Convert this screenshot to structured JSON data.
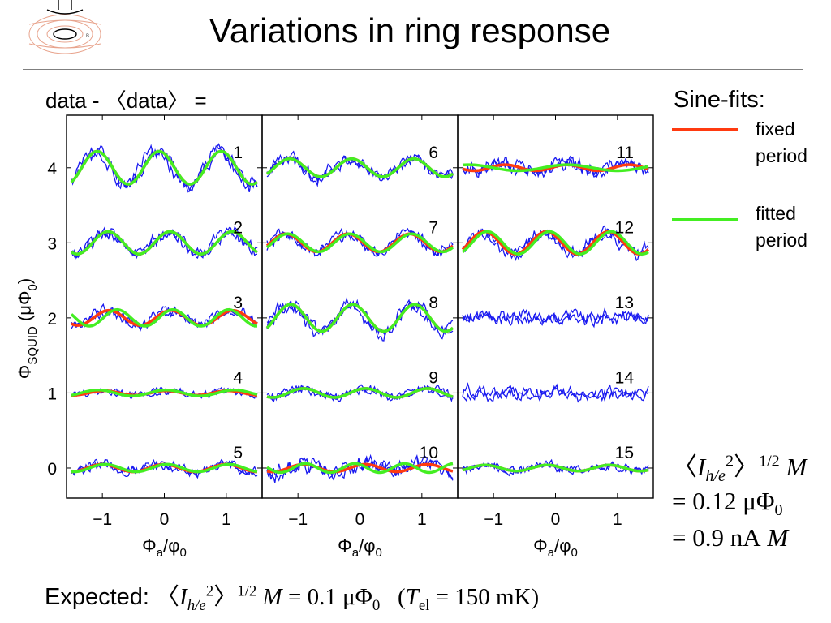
{
  "slide": {
    "title": "Variations in ring response",
    "eq_top": "data - 〈data〉 =",
    "sine_fits_label": "Sine-fits:",
    "legend_fixed_1": "fixed",
    "legend_fixed_2": "period",
    "legend_fitted_1": "fitted",
    "legend_fitted_2": "period",
    "result_line1_a": "〈",
    "result_line1_I": "I",
    "result_line1_sub": "h/e",
    "result_line1_sup2": "2",
    "result_line1_close": "〉",
    "result_line1_sup": "1/2",
    "result_line1_M": "M",
    "result_line2": "= 0.12 μΦ",
    "result_line2_sub": "0",
    "result_line3": "= 0.9 nA",
    "result_line3_M": "M",
    "expected_label": "Expected:",
    "expected_open": "〈",
    "expected_I": "I",
    "expected_sub": "h/e",
    "expected_sup2": "2",
    "expected_close": "〉",
    "expected_sup": "1/2",
    "expected_M": "M",
    "expected_val": "= 0.1 μΦ",
    "expected_val_sub": "0",
    "expected_T_open": "(",
    "expected_T": "T",
    "expected_T_sub": "el",
    "expected_T_val": "= 150 mK)"
  },
  "colors": {
    "data": "#1a1af0",
    "fixed": "#ff3a10",
    "fitted": "#44ee22",
    "frame": "#000000"
  },
  "chart_data": {
    "type": "line",
    "ylabel": "ΦSQUID (μΦ0)",
    "xlabel": "Φa/φ0",
    "xlim": [
      -1.5,
      1.5
    ],
    "ylim": [
      -0.4,
      4.7
    ],
    "xticks": [
      -1,
      0,
      1
    ],
    "yticks": [
      0,
      1,
      2,
      3,
      4
    ],
    "panels": [
      {
        "traces": [
          {
            "label": "1",
            "offset": 4,
            "fixed_amp": 0.22,
            "fixed_phase": 2.1,
            "fitted_amp": 0.22,
            "fitted_period": 1.0,
            "fitted_phase": 2.1,
            "noise": 0.1,
            "seed": 11
          },
          {
            "label": "2",
            "offset": 3,
            "fixed_amp": 0.15,
            "fixed_phase": 1.0,
            "fitted_amp": 0.15,
            "fitted_period": 1.0,
            "fitted_phase": 1.0,
            "noise": 0.09,
            "seed": 12
          },
          {
            "label": "3",
            "offset": 2,
            "fixed_amp": 0.1,
            "fixed_phase": 0.9,
            "fitted_amp": 0.11,
            "fitted_period": 0.9,
            "fitted_phase": 0.6,
            "noise": 0.07,
            "seed": 13
          },
          {
            "label": "4",
            "offset": 1,
            "fixed_amp": 0.03,
            "fixed_phase": 1.4,
            "fitted_amp": 0.04,
            "fitted_period": 1.1,
            "fitted_phase": 1.4,
            "noise": 0.05,
            "seed": 14
          },
          {
            "label": "5",
            "offset": 0,
            "fixed_amp": 0.05,
            "fixed_phase": 1.6,
            "fitted_amp": 0.05,
            "fitted_period": 1.0,
            "fitted_phase": 1.3,
            "noise": 0.07,
            "seed": 15
          }
        ]
      },
      {
        "traces": [
          {
            "label": "6",
            "offset": 4,
            "fixed_amp": 0.12,
            "fixed_phase": 2.4,
            "fitted_amp": 0.12,
            "fitted_period": 1.0,
            "fitted_phase": 2.4,
            "noise": 0.09,
            "seed": 21
          },
          {
            "label": "7",
            "offset": 3,
            "fixed_amp": 0.12,
            "fixed_phase": 2.8,
            "fitted_amp": 0.12,
            "fitted_period": 1.0,
            "fitted_phase": 2.6,
            "noise": 0.08,
            "seed": 22
          },
          {
            "label": "8",
            "offset": 2,
            "fixed_amp": 0.18,
            "fixed_phase": 2.3,
            "fitted_amp": 0.18,
            "fitted_period": 1.0,
            "fitted_phase": 2.3,
            "noise": 0.1,
            "seed": 23
          },
          {
            "label": "9",
            "offset": 1,
            "fixed_amp": 0.06,
            "fixed_phase": 1.0,
            "fitted_amp": 0.06,
            "fitted_period": 1.0,
            "fitted_phase": 1.0,
            "noise": 0.06,
            "seed": 24
          },
          {
            "label": "10",
            "offset": 0,
            "fixed_amp": 0.05,
            "fixed_phase": 1.0,
            "fitted_amp": 0.06,
            "fitted_period": 0.8,
            "fitted_phase": 2.2,
            "noise": 0.12,
            "seed": 25
          }
        ]
      },
      {
        "traces": [
          {
            "label": "11",
            "offset": 4,
            "fixed_amp": 0.04,
            "fixed_phase": 0.4,
            "fitted_amp": 0.04,
            "fitted_period": 1.6,
            "fitted_phase": 0.8,
            "noise": 0.1,
            "seed": 31
          },
          {
            "label": "12",
            "offset": 3,
            "fixed_amp": 0.15,
            "fixed_phase": 2.5,
            "fitted_amp": 0.15,
            "fitted_period": 1.0,
            "fitted_phase": 2.2,
            "noise": 0.09,
            "seed": 32
          },
          {
            "label": "13",
            "offset": 2,
            "fixed_amp": 0,
            "fixed_phase": 0,
            "fitted_amp": 0,
            "fitted_period": 1.0,
            "fitted_phase": 0,
            "noise": 0.1,
            "seed": 33
          },
          {
            "label": "14",
            "offset": 1,
            "fixed_amp": 0,
            "fixed_phase": 0,
            "fitted_amp": 0,
            "fitted_period": 1.0,
            "fitted_phase": 0,
            "noise": 0.1,
            "seed": 34
          },
          {
            "label": "15",
            "offset": 0,
            "fixed_amp": 0.04,
            "fixed_phase": 2.4,
            "fitted_amp": 0.04,
            "fitted_period": 1.0,
            "fitted_phase": 2.4,
            "noise": 0.06,
            "seed": 35
          }
        ]
      }
    ]
  }
}
